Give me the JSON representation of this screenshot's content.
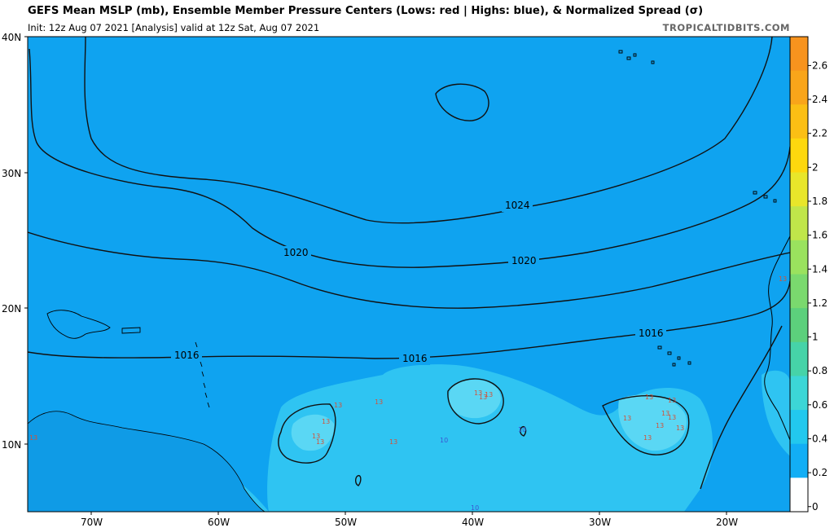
{
  "header": {
    "title": "GEFS Mean MSLP (mb), Ensemble Member Pressure Centers (Lows: red | Highs: blue), & Normalized Spread (σ)",
    "subtitle": "Init: 12z Aug 07 2021   [Analysis]   valid at 12z Sat, Aug 07 2021",
    "credit": "TROPICALTIDBITS.COM"
  },
  "map": {
    "lon_range": [
      -75,
      -15
    ],
    "lat_range": [
      5,
      40
    ],
    "lon_ticks": [
      "70W",
      "60W",
      "50W",
      "40W",
      "30W",
      "20W"
    ],
    "lat_ticks": [
      "40N",
      "30N",
      "20N",
      "10N"
    ],
    "isobar_labels": [
      "1024",
      "1020",
      "1020",
      "1016",
      "1016",
      "1016"
    ],
    "low_center_label": "13",
    "high_center_label": "10"
  },
  "colorbar": {
    "ticks": [
      "2.6",
      "2.4",
      "2.2",
      "2",
      "1.8",
      "1.6",
      "1.4",
      "1.2",
      "1",
      "0.8",
      "0.6",
      "0.4",
      "0.2",
      "0"
    ],
    "colors": [
      "#f7931e",
      "#f9a51a",
      "#fbbf14",
      "#fdd80e",
      "#e8e62a",
      "#c0e64a",
      "#9ae25e",
      "#7ad96e",
      "#5cd07c",
      "#46d3a8",
      "#3cd6d6",
      "#22c8ee",
      "#12aef5",
      "#ffffff"
    ]
  },
  "colors": {
    "ocean": "#0fa3f0",
    "spread_low": "#2fc4f2",
    "spread_mid": "#5ad7f4",
    "contour": "#111111",
    "low_marker": "#d2533a",
    "high_marker": "#3a57d2"
  }
}
